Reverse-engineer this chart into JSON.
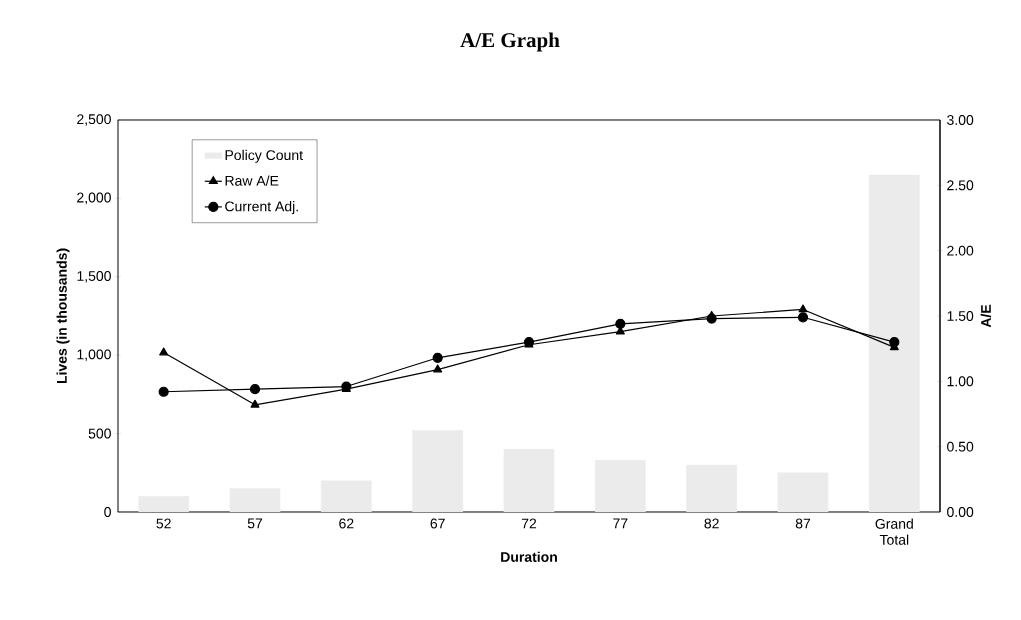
{
  "chart_data": {
    "type": "line",
    "title": "A/E Graph",
    "xlabel": "Duration",
    "ylabel": "Lives (in thousands)",
    "y2label": "A/E",
    "categories": [
      "52",
      "57",
      "62",
      "67",
      "72",
      "77",
      "82",
      "87",
      "Grand Total"
    ],
    "series": [
      {
        "name": "Policy Count",
        "type": "bar",
        "color": "#ebebeb",
        "values": [
          100,
          150,
          200,
          520,
          400,
          330,
          300,
          250,
          2150
        ]
      },
      {
        "name": "Raw A/E",
        "axis": "y2",
        "marker": "triangle",
        "color": "#000000",
        "values": [
          1.22,
          0.82,
          0.94,
          1.09,
          1.28,
          1.38,
          1.5,
          1.55,
          1.26
        ]
      },
      {
        "name": "Current Adj.",
        "axis": "y2",
        "marker": "circle",
        "color": "#000000",
        "values": [
          0.92,
          0.94,
          0.96,
          1.18,
          1.3,
          1.44,
          1.48,
          1.49,
          1.3
        ]
      }
    ],
    "ylim": [
      0,
      2500
    ],
    "yticks": [
      0,
      500,
      {
        "value": 1000,
        "label": "1,000"
      },
      {
        "value": 1500,
        "label": "1,500"
      },
      {
        "value": 2000,
        "label": "2,000"
      },
      {
        "value": 2500,
        "label": "2,500"
      }
    ],
    "y2lim": [
      0,
      3
    ],
    "y2ticks": [
      {
        "value": 0,
        "label": "0.00"
      },
      {
        "value": 0.5,
        "label": "0.50"
      },
      {
        "value": 1,
        "label": "1.00"
      },
      {
        "value": 1.5,
        "label": "1.50"
      },
      {
        "value": 2,
        "label": "2.00"
      },
      {
        "value": 2.5,
        "label": "2.50"
      },
      {
        "value": 3,
        "label": "3.00"
      }
    ],
    "legend": "top left",
    "grid": false,
    "line_style": "solid"
  }
}
